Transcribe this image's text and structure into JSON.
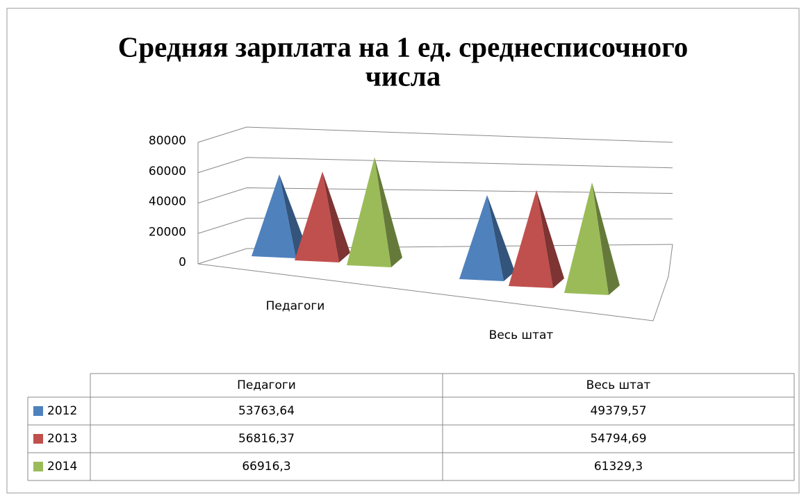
{
  "chart_data": {
    "type": "pyramid3d",
    "title": "Средняя зарплата на 1 ед. среднесписочного числа",
    "categories": [
      "Педагоги",
      "Весь штат"
    ],
    "series": [
      {
        "name": "2012",
        "color": "#4f81bd",
        "values": [
          53763.64,
          49379.57
        ],
        "value_labels": [
          "53763,64",
          "49379,57"
        ]
      },
      {
        "name": "2013",
        "color": "#c0504d",
        "values": [
          56816.37,
          54794.69
        ],
        "value_labels": [
          "56816,37",
          "54794,69"
        ]
      },
      {
        "name": "2014",
        "color": "#9bbb59",
        "values": [
          66916.3,
          61329.3
        ],
        "value_labels": [
          "66916,3",
          "61329,3"
        ]
      }
    ],
    "ylim": [
      0,
      80000
    ],
    "yticks": [
      0,
      20000,
      40000,
      60000,
      80000
    ],
    "grid": true
  }
}
